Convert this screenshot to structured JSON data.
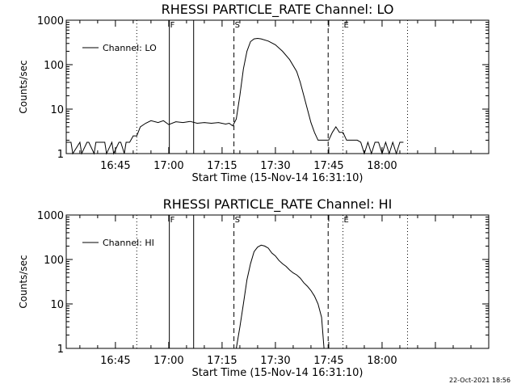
{
  "footer": {
    "timestamp": "22-Oct-2021 18:56"
  },
  "chart_data": [
    {
      "type": "line",
      "title": "RHESSI PARTICLE_RATE Channel: LO",
      "xlabel": "Start Time (15-Nov-14 16:31:10)",
      "ylabel": "Counts/sec",
      "y_scale": "log",
      "ylim": [
        1,
        1000
      ],
      "y_ticks": [
        "1",
        "10",
        "100",
        "1000"
      ],
      "xlim": [
        "16:31:10",
        "18:30:00"
      ],
      "x_ticks": [
        "16:45",
        "17:00",
        "17:15",
        "17:30",
        "17:45",
        "18:00"
      ],
      "legend": {
        "position": "top-left",
        "label": "Channel: LO"
      },
      "markers": [
        {
          "label": "F",
          "time": "17:00:10",
          "style": "solid"
        },
        {
          "label": "",
          "time": "17:07:00",
          "style": "solid"
        },
        {
          "label": "S",
          "time": "17:18:20",
          "style": "dashed"
        },
        {
          "label": "",
          "time": "17:44:50",
          "style": "dashed"
        },
        {
          "label": "E",
          "time": "17:49:00",
          "style": "dotted"
        },
        {
          "label": "",
          "time": "16:51:00",
          "style": "dotted"
        },
        {
          "label": "",
          "time": "18:07:10",
          "style": "dotted"
        }
      ],
      "series": [
        {
          "x": [
            "16:31:10",
            "16:32:30",
            "16:33:00",
            "16:35:00",
            "16:35:30",
            "16:37:00",
            "16:37:30",
            "16:39:00",
            "16:39:30",
            "16:42:00",
            "16:42:30",
            "16:44:00",
            "16:44:30",
            "16:46:00",
            "16:46:30",
            "16:47:30",
            "16:48:00",
            "16:49:00",
            "16:50:00",
            "16:51:00",
            "16:52:00",
            "16:53:30",
            "16:55:00",
            "16:57:00",
            "16:58:30",
            "17:00:00",
            "17:02:00",
            "17:04:00",
            "17:06:00",
            "17:08:00",
            "17:10:00",
            "17:12:00",
            "17:14:00",
            "17:16:00",
            "17:17:00",
            "17:18:00",
            "17:19:00",
            "17:20:00",
            "17:21:00",
            "17:22:00",
            "17:23:00",
            "17:24:00",
            "17:25:00",
            "17:26:00",
            "17:28:00",
            "17:30:00",
            "17:32:00",
            "17:34:00",
            "17:36:00",
            "17:37:00",
            "17:38:00",
            "17:39:00",
            "17:40:00",
            "17:41:00",
            "17:42:00",
            "17:43:00",
            "17:44:00",
            "17:45:00",
            "17:46:00",
            "17:47:00",
            "17:48:00",
            "17:49:00",
            "17:50:00",
            "17:51:00",
            "17:52:00",
            "17:53:00",
            "17:54:00",
            "17:55:00",
            "17:56:00",
            "17:57:00",
            "17:58:00",
            "17:59:00",
            "18:00:00",
            "18:01:00",
            "18:02:00",
            "18:03:00",
            "18:04:00",
            "18:05:00",
            "18:06:00"
          ],
          "y": [
            1.8,
            1.8,
            1,
            1.8,
            1,
            1.8,
            1.8,
            1,
            1.8,
            1.8,
            1,
            1.8,
            1,
            1.8,
            1.8,
            1,
            1.8,
            1.8,
            2.5,
            2.5,
            4,
            4.8,
            5.5,
            5,
            5.5,
            4.5,
            5.2,
            5,
            5.3,
            4.8,
            5,
            4.8,
            5,
            4.6,
            4.8,
            4.2,
            6,
            20,
            80,
            200,
            330,
            380,
            390,
            380,
            340,
            280,
            200,
            130,
            70,
            40,
            20,
            10,
            5,
            3,
            2,
            2,
            2,
            2,
            3,
            4,
            3,
            3,
            2,
            2,
            2,
            2,
            1.8,
            1,
            1.8,
            1,
            1.8,
            1.8,
            1,
            1.8,
            1,
            1.8,
            1,
            1.8,
            1.8
          ]
        }
      ]
    },
    {
      "type": "line",
      "title": "RHESSI PARTICLE_RATE Channel: HI",
      "xlabel": "Start Time (15-Nov-14 16:31:10)",
      "ylabel": "Counts/sec",
      "y_scale": "log",
      "ylim": [
        1,
        1000
      ],
      "y_ticks": [
        "1",
        "10",
        "100",
        "1000"
      ],
      "xlim": [
        "16:31:10",
        "18:30:00"
      ],
      "x_ticks": [
        "16:45",
        "17:00",
        "17:15",
        "17:30",
        "17:45",
        "18:00"
      ],
      "legend": {
        "position": "top-left",
        "label": "Channel: HI"
      },
      "markers": [
        {
          "label": "F",
          "time": "17:00:10",
          "style": "solid"
        },
        {
          "label": "",
          "time": "17:07:00",
          "style": "solid"
        },
        {
          "label": "S",
          "time": "17:18:20",
          "style": "dashed"
        },
        {
          "label": "",
          "time": "17:44:50",
          "style": "dashed"
        },
        {
          "label": "E",
          "time": "17:49:00",
          "style": "dotted"
        },
        {
          "label": "",
          "time": "16:51:00",
          "style": "dotted"
        },
        {
          "label": "",
          "time": "18:07:10",
          "style": "dotted"
        }
      ],
      "series": [
        {
          "x": [
            "17:19:00",
            "17:20:00",
            "17:21:00",
            "17:22:00",
            "17:23:00",
            "17:24:00",
            "17:25:00",
            "17:26:00",
            "17:27:00",
            "17:28:00",
            "17:29:00",
            "17:30:00",
            "17:31:00",
            "17:32:00",
            "17:33:00",
            "17:34:00",
            "17:35:00",
            "17:36:00",
            "17:37:00",
            "17:38:00",
            "17:39:00",
            "17:40:00",
            "17:41:00",
            "17:42:00",
            "17:43:00",
            "17:43:40"
          ],
          "y": [
            1,
            3,
            10,
            35,
            80,
            150,
            190,
            210,
            200,
            180,
            140,
            120,
            95,
            80,
            70,
            58,
            50,
            45,
            38,
            30,
            25,
            20,
            15,
            10,
            5,
            1
          ]
        }
      ]
    }
  ]
}
